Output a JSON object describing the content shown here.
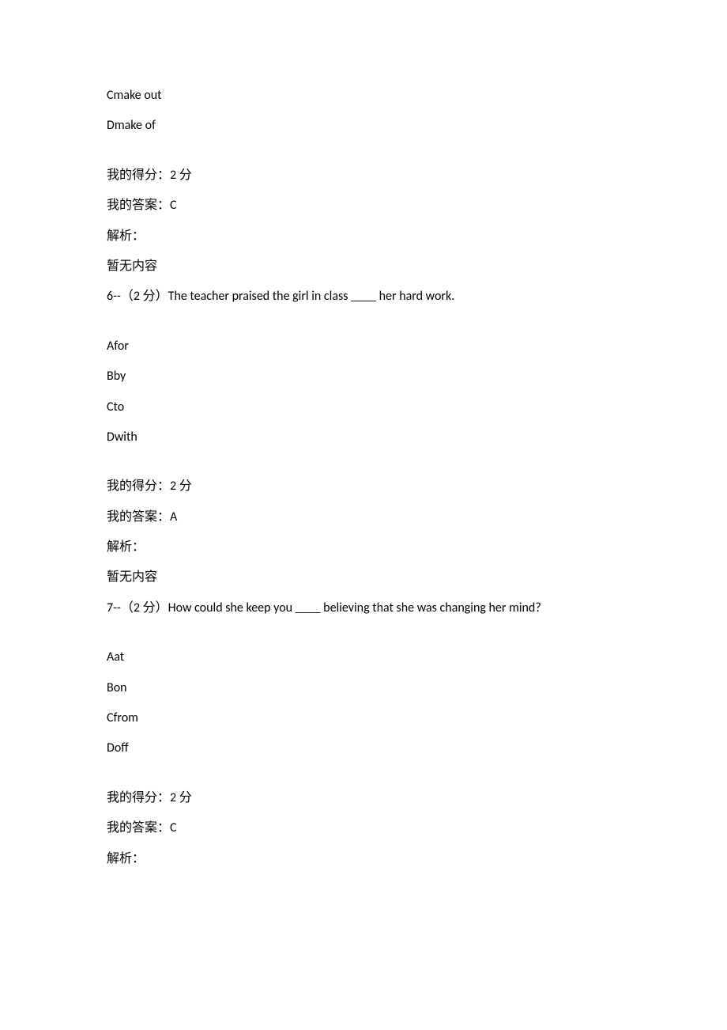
{
  "q5_partial": {
    "options": [
      {
        "label": "C",
        "text": "make out"
      },
      {
        "label": "D",
        "text": "make of"
      }
    ],
    "score_label": "我的得分：",
    "score_value": "2 分",
    "answer_label": "我的答案：",
    "answer_value": "C",
    "analysis_label": "解析：",
    "analysis_text": "暂无内容"
  },
  "q6": {
    "number": "6--",
    "points": "（2 分）",
    "stem": "The teacher praised the girl in class ____ her hard work.",
    "options": [
      {
        "label": "A",
        "text": "for"
      },
      {
        "label": "B",
        "text": "by"
      },
      {
        "label": "C",
        "text": "to"
      },
      {
        "label": "D",
        "text": "with"
      }
    ],
    "score_label": "我的得分：",
    "score_value": "2 分",
    "answer_label": "我的答案：",
    "answer_value": "A",
    "analysis_label": "解析：",
    "analysis_text": "暂无内容"
  },
  "q7": {
    "number": "7--",
    "points": "（2 分）",
    "stem": "How could she keep you ____ believing that she was changing her mind?",
    "options": [
      {
        "label": "A",
        "text": "at"
      },
      {
        "label": "B",
        "text": "on"
      },
      {
        "label": "C",
        "text": "from"
      },
      {
        "label": "D",
        "text": "off"
      }
    ],
    "score_label": "我的得分：",
    "score_value": "2 分",
    "answer_label": "我的答案：",
    "answer_value": "C",
    "analysis_label": "解析："
  }
}
